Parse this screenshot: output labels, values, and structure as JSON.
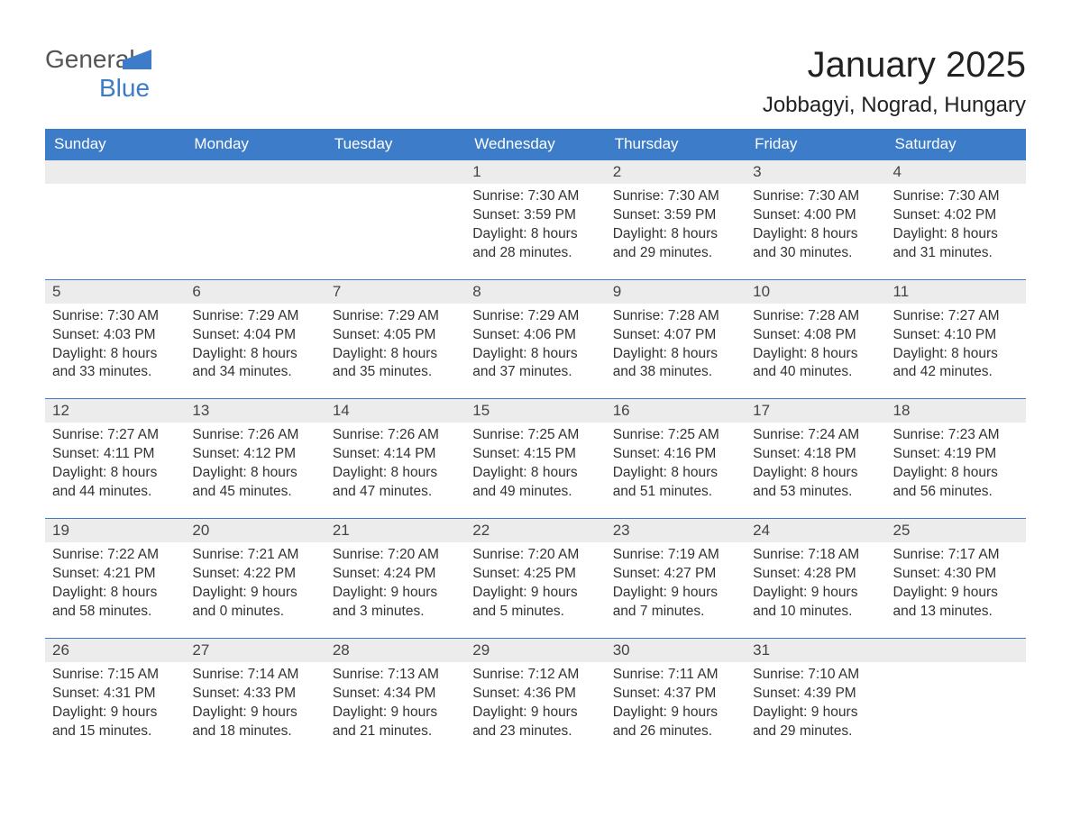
{
  "logo": {
    "word1": "General",
    "word2": "Blue"
  },
  "title": "January 2025",
  "location": "Jobbagyi, Nograd, Hungary",
  "colors": {
    "header_bg": "#3d7cc9",
    "header_text": "#ffffff",
    "daynum_bg": "#ececec",
    "body_text": "#333333",
    "page_bg": "#ffffff"
  },
  "typography": {
    "title_fontsize": 40,
    "location_fontsize": 24,
    "weekday_fontsize": 17,
    "daynum_fontsize": 17,
    "detail_fontsize": 15.5
  },
  "calendar": {
    "type": "table",
    "weekdays": [
      "Sunday",
      "Monday",
      "Tuesday",
      "Wednesday",
      "Thursday",
      "Friday",
      "Saturday"
    ],
    "weeks": [
      [
        null,
        null,
        null,
        {
          "day": "1",
          "sunrise": "7:30 AM",
          "sunset": "3:59 PM",
          "dl_h": "8",
          "dl_m": "28"
        },
        {
          "day": "2",
          "sunrise": "7:30 AM",
          "sunset": "3:59 PM",
          "dl_h": "8",
          "dl_m": "29"
        },
        {
          "day": "3",
          "sunrise": "7:30 AM",
          "sunset": "4:00 PM",
          "dl_h": "8",
          "dl_m": "30"
        },
        {
          "day": "4",
          "sunrise": "7:30 AM",
          "sunset": "4:02 PM",
          "dl_h": "8",
          "dl_m": "31"
        }
      ],
      [
        {
          "day": "5",
          "sunrise": "7:30 AM",
          "sunset": "4:03 PM",
          "dl_h": "8",
          "dl_m": "33"
        },
        {
          "day": "6",
          "sunrise": "7:29 AM",
          "sunset": "4:04 PM",
          "dl_h": "8",
          "dl_m": "34"
        },
        {
          "day": "7",
          "sunrise": "7:29 AM",
          "sunset": "4:05 PM",
          "dl_h": "8",
          "dl_m": "35"
        },
        {
          "day": "8",
          "sunrise": "7:29 AM",
          "sunset": "4:06 PM",
          "dl_h": "8",
          "dl_m": "37"
        },
        {
          "day": "9",
          "sunrise": "7:28 AM",
          "sunset": "4:07 PM",
          "dl_h": "8",
          "dl_m": "38"
        },
        {
          "day": "10",
          "sunrise": "7:28 AM",
          "sunset": "4:08 PM",
          "dl_h": "8",
          "dl_m": "40"
        },
        {
          "day": "11",
          "sunrise": "7:27 AM",
          "sunset": "4:10 PM",
          "dl_h": "8",
          "dl_m": "42"
        }
      ],
      [
        {
          "day": "12",
          "sunrise": "7:27 AM",
          "sunset": "4:11 PM",
          "dl_h": "8",
          "dl_m": "44"
        },
        {
          "day": "13",
          "sunrise": "7:26 AM",
          "sunset": "4:12 PM",
          "dl_h": "8",
          "dl_m": "45"
        },
        {
          "day": "14",
          "sunrise": "7:26 AM",
          "sunset": "4:14 PM",
          "dl_h": "8",
          "dl_m": "47"
        },
        {
          "day": "15",
          "sunrise": "7:25 AM",
          "sunset": "4:15 PM",
          "dl_h": "8",
          "dl_m": "49"
        },
        {
          "day": "16",
          "sunrise": "7:25 AM",
          "sunset": "4:16 PM",
          "dl_h": "8",
          "dl_m": "51"
        },
        {
          "day": "17",
          "sunrise": "7:24 AM",
          "sunset": "4:18 PM",
          "dl_h": "8",
          "dl_m": "53"
        },
        {
          "day": "18",
          "sunrise": "7:23 AM",
          "sunset": "4:19 PM",
          "dl_h": "8",
          "dl_m": "56"
        }
      ],
      [
        {
          "day": "19",
          "sunrise": "7:22 AM",
          "sunset": "4:21 PM",
          "dl_h": "8",
          "dl_m": "58"
        },
        {
          "day": "20",
          "sunrise": "7:21 AM",
          "sunset": "4:22 PM",
          "dl_h": "9",
          "dl_m": "0"
        },
        {
          "day": "21",
          "sunrise": "7:20 AM",
          "sunset": "4:24 PM",
          "dl_h": "9",
          "dl_m": "3"
        },
        {
          "day": "22",
          "sunrise": "7:20 AM",
          "sunset": "4:25 PM",
          "dl_h": "9",
          "dl_m": "5"
        },
        {
          "day": "23",
          "sunrise": "7:19 AM",
          "sunset": "4:27 PM",
          "dl_h": "9",
          "dl_m": "7"
        },
        {
          "day": "24",
          "sunrise": "7:18 AM",
          "sunset": "4:28 PM",
          "dl_h": "9",
          "dl_m": "10"
        },
        {
          "day": "25",
          "sunrise": "7:17 AM",
          "sunset": "4:30 PM",
          "dl_h": "9",
          "dl_m": "13"
        }
      ],
      [
        {
          "day": "26",
          "sunrise": "7:15 AM",
          "sunset": "4:31 PM",
          "dl_h": "9",
          "dl_m": "15"
        },
        {
          "day": "27",
          "sunrise": "7:14 AM",
          "sunset": "4:33 PM",
          "dl_h": "9",
          "dl_m": "18"
        },
        {
          "day": "28",
          "sunrise": "7:13 AM",
          "sunset": "4:34 PM",
          "dl_h": "9",
          "dl_m": "21"
        },
        {
          "day": "29",
          "sunrise": "7:12 AM",
          "sunset": "4:36 PM",
          "dl_h": "9",
          "dl_m": "23"
        },
        {
          "day": "30",
          "sunrise": "7:11 AM",
          "sunset": "4:37 PM",
          "dl_h": "9",
          "dl_m": "26"
        },
        {
          "day": "31",
          "sunrise": "7:10 AM",
          "sunset": "4:39 PM",
          "dl_h": "9",
          "dl_m": "29"
        },
        null
      ]
    ]
  },
  "labels": {
    "sunrise": "Sunrise: ",
    "sunset": "Sunset: ",
    "daylight_prefix": "Daylight: ",
    "hours_word": " hours",
    "and_word": "and ",
    "minutes_word": " minutes."
  }
}
